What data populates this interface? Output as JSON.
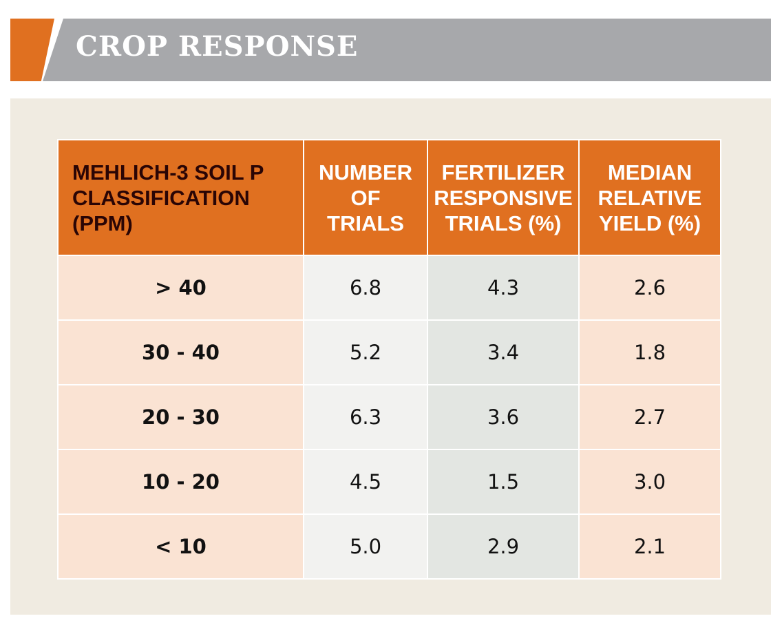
{
  "title": "CROP RESPONSE",
  "colors": {
    "accent": "#e07020",
    "banner": "#a7a8ab",
    "panel": "#f0ebe1"
  },
  "table": {
    "headers": [
      "MEHLICH-3 SOIL P CLASSIFICATION (PPM)",
      "NUMBER OF TRIALS",
      "FERTILIZER RESPONSIVE TRIALS (%)",
      "MEDIAN RELATIVE YIELD (%)"
    ],
    "rows": [
      [
        "> 40",
        "6.8",
        "4.3",
        "2.6"
      ],
      [
        "30 - 40",
        "5.2",
        "3.4",
        "1.8"
      ],
      [
        "20 - 30",
        "6.3",
        "3.6",
        "2.7"
      ],
      [
        "10 - 20",
        "4.5",
        "1.5",
        "3.0"
      ],
      [
        "< 10",
        "5.0",
        "2.9",
        "2.1"
      ]
    ]
  }
}
